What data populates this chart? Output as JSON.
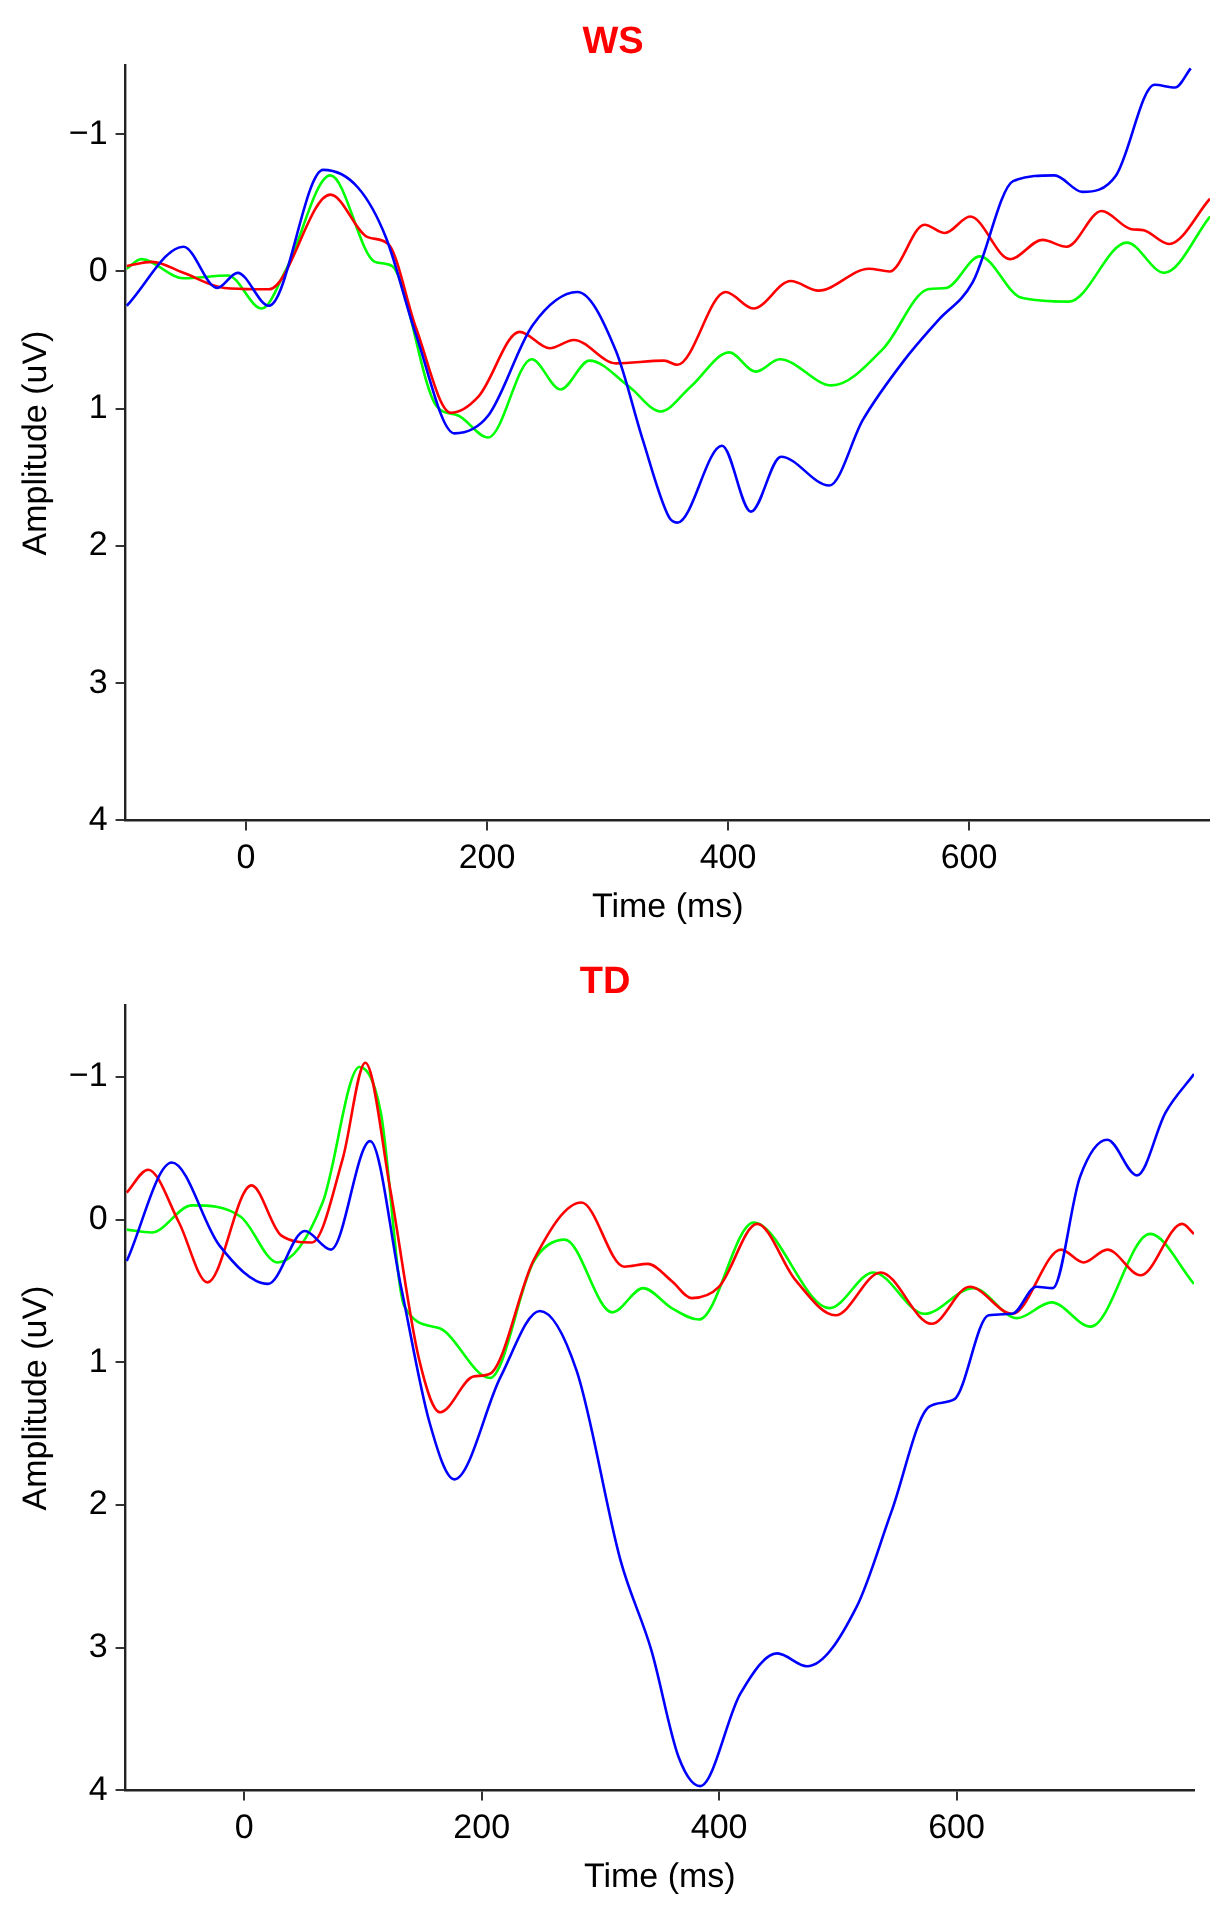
{
  "chart_data": [
    {
      "type": "line",
      "title": "WS",
      "xlabel": "Time (ms)",
      "ylabel": "Amplitude (uV)",
      "xlim": [
        -100,
        800
      ],
      "ylim": [
        4,
        -1.5
      ],
      "xticks": [
        0,
        200,
        400,
        600
      ],
      "yticks": [
        {
          "value": -1,
          "label": "−1"
        },
        0,
        1,
        2,
        3,
        4
      ],
      "grid": false,
      "legend": false,
      "marker": "none",
      "line_style": "solid",
      "series": [
        {
          "color": "#0000ff",
          "x": [
            -99,
            -52,
            -24,
            -7,
            19,
            64,
            93,
            116,
            141,
            173,
            201,
            238,
            275,
            307,
            329,
            351,
            358,
            395,
            419,
            444,
            484,
            512,
            546,
            574,
            603,
            637,
            671,
            694,
            722,
            754,
            771,
            784
          ],
          "values": [
            0.25,
            -0.18,
            0.12,
            0.01,
            0.25,
            -0.74,
            -0.61,
            -0.25,
            0.46,
            1.18,
            1.05,
            0.39,
            0.15,
            0.58,
            1.22,
            1.79,
            1.83,
            1.27,
            1.75,
            1.35,
            1.56,
            1.08,
            0.65,
            0.36,
            0.08,
            -0.66,
            -0.7,
            -0.58,
            -0.7,
            -1.36,
            -1.34,
            -1.48
          ]
        },
        {
          "color": "#ff0000",
          "x": [
            -99,
            -78,
            -52,
            -18,
            19,
            70,
            101,
            118,
            141,
            170,
            193,
            227,
            252,
            272,
            307,
            347,
            358,
            398,
            421,
            452,
            475,
            517,
            534,
            563,
            580,
            601,
            634,
            661,
            681,
            710,
            734,
            745,
            766,
            800
          ],
          "values": [
            -0.04,
            -0.07,
            0.01,
            0.12,
            0.13,
            -0.56,
            -0.25,
            -0.2,
            0.41,
            1.03,
            0.91,
            0.44,
            0.56,
            0.5,
            0.67,
            0.65,
            0.68,
            0.15,
            0.27,
            0.07,
            0.14,
            -0.02,
            0.0,
            -0.34,
            -0.28,
            -0.4,
            -0.09,
            -0.23,
            -0.18,
            -0.44,
            -0.31,
            -0.3,
            -0.2,
            -0.53
          ]
        },
        {
          "color": "#00ff00",
          "x": [
            -99,
            -87,
            -52,
            -15,
            13,
            33,
            70,
            107,
            121,
            158,
            176,
            201,
            237,
            261,
            285,
            318,
            344,
            369,
            401,
            423,
            443,
            486,
            529,
            566,
            581,
            609,
            643,
            683,
            731,
            762,
            800
          ],
          "values": [
            -0.02,
            -0.09,
            0.05,
            0.03,
            0.27,
            -0.01,
            -0.7,
            -0.07,
            -0.04,
            0.98,
            1.05,
            1.21,
            0.64,
            0.86,
            0.65,
            0.84,
            1.02,
            0.84,
            0.59,
            0.73,
            0.64,
            0.83,
            0.56,
            0.13,
            0.12,
            -0.11,
            0.19,
            0.22,
            -0.21,
            0.01,
            -0.4
          ]
        }
      ]
    },
    {
      "type": "line",
      "title": "TD",
      "xlabel": "Time (ms)",
      "ylabel": "Amplitude (uV)",
      "xlim": [
        -100,
        800
      ],
      "ylim": [
        4,
        -1.5
      ],
      "xticks": [
        0,
        200,
        400,
        600
      ],
      "yticks": [
        {
          "value": -1,
          "label": "−1"
        },
        0,
        1,
        2,
        3,
        4
      ],
      "grid": false,
      "legend": false,
      "marker": "none",
      "line_style": "solid",
      "series": [
        {
          "color": "#0000ff",
          "x": [
            -99,
            -61,
            -21,
            20,
            51,
            73,
            106,
            132,
            156,
            177,
            216,
            249,
            280,
            317,
            343,
            366,
            384,
            418,
            449,
            474,
            516,
            545,
            577,
            598,
            627,
            647,
            667,
            681,
            704,
            727,
            752,
            776,
            800
          ],
          "values": [
            0.29,
            -0.4,
            0.18,
            0.45,
            0.08,
            0.21,
            -0.55,
            0.47,
            1.42,
            1.82,
            1.1,
            0.64,
            1.06,
            2.39,
            3.02,
            3.77,
            3.97,
            3.32,
            3.04,
            3.13,
            2.71,
            2.05,
            1.31,
            1.26,
            0.67,
            0.66,
            0.47,
            0.48,
            -0.3,
            -0.56,
            -0.31,
            -0.75,
            -1.02
          ]
        },
        {
          "color": "#ff0000",
          "x": [
            -99,
            -81,
            -55,
            -31,
            6,
            31,
            57,
            83,
            102,
            123,
            147,
            165,
            193,
            207,
            244,
            284,
            320,
            340,
            360,
            377,
            400,
            432,
            464,
            498,
            536,
            579,
            611,
            647,
            688,
            707,
            727,
            755,
            790,
            800
          ],
          "values": [
            -0.19,
            -0.35,
            0.02,
            0.44,
            -0.24,
            0.11,
            0.16,
            -0.43,
            -1.1,
            -0.21,
            0.97,
            1.35,
            1.1,
            1.08,
            0.28,
            -0.12,
            0.33,
            0.31,
            0.43,
            0.55,
            0.47,
            0.03,
            0.42,
            0.67,
            0.37,
            0.73,
            0.47,
            0.66,
            0.21,
            0.3,
            0.21,
            0.39,
            0.03,
            0.1
          ]
        },
        {
          "color": "#00ff00",
          "x": [
            -99,
            -78,
            -44,
            -3,
            28,
            66,
            97,
            115,
            135,
            164,
            207,
            244,
            270,
            310,
            336,
            360,
            383,
            429,
            493,
            530,
            573,
            614,
            651,
            680,
            713,
            763,
            800
          ],
          "values": [
            0.07,
            0.09,
            -0.1,
            -0.02,
            0.3,
            -0.12,
            -1.07,
            -0.75,
            0.61,
            0.76,
            1.11,
            0.29,
            0.14,
            0.65,
            0.48,
            0.62,
            0.7,
            0.02,
            0.62,
            0.37,
            0.66,
            0.48,
            0.69,
            0.58,
            0.75,
            0.1,
            0.45
          ]
        }
      ]
    }
  ]
}
